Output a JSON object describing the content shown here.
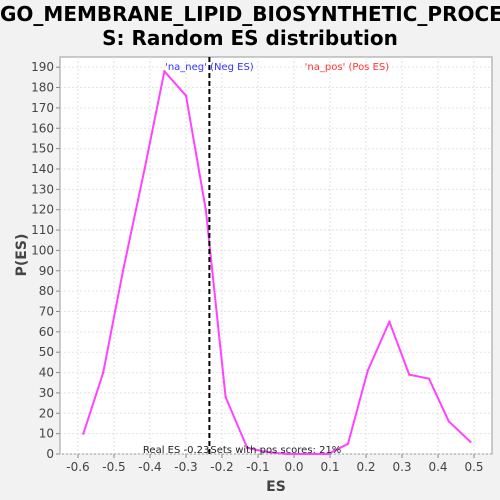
{
  "chart_data": {
    "type": "line",
    "title_lines": [
      "GO_MEMBRANE_LIPID_BIOSYNTHETIC_PROCES",
      "S: Random ES distribution"
    ],
    "xlabel": "ES",
    "ylabel": "P(ES)",
    "xlim": [
      -0.65,
      0.55
    ],
    "ylim": [
      0,
      195
    ],
    "x_ticks": [
      -0.6,
      -0.5,
      -0.4,
      -0.3,
      -0.2,
      -0.1,
      0.0,
      0.1,
      0.2,
      0.3,
      0.4,
      0.5
    ],
    "x_tick_labels": [
      "-0.6",
      "-0.5",
      "-0.4",
      "-0.3",
      "-0.2",
      "-0.1",
      "0.0",
      "0.1",
      "0.2",
      "0.3",
      "0.4",
      "0.5"
    ],
    "y_ticks": [
      0,
      10,
      20,
      30,
      40,
      50,
      60,
      70,
      80,
      90,
      100,
      110,
      120,
      130,
      140,
      150,
      160,
      170,
      180,
      190
    ],
    "y_tick_labels": [
      "0",
      "10",
      "20",
      "30",
      "40",
      "50",
      "60",
      "70",
      "80",
      "90",
      "100",
      "110",
      "120",
      "130",
      "140",
      "150",
      "160",
      "170",
      "180",
      "190"
    ],
    "grid": true,
    "series": [
      {
        "color": "#ff44ff",
        "x": [
          -0.585,
          -0.53,
          -0.475,
          -0.415,
          -0.36,
          -0.3,
          -0.245,
          -0.19,
          -0.13,
          -0.075,
          -0.02,
          0.04,
          0.095,
          0.15,
          0.205,
          0.265,
          0.32,
          0.375,
          0.43,
          0.49
        ],
        "y": [
          10,
          40,
          90,
          140,
          188,
          176,
          120,
          28,
          3,
          1,
          0,
          0,
          0,
          5,
          41,
          65,
          39,
          37,
          16,
          6
        ]
      }
    ],
    "real_es_line": {
      "x": -0.235,
      "color": "#000000"
    },
    "annotations": {
      "neg_label": "'na_neg' (Neg ES)",
      "neg_color": "#3333ff",
      "pos_label": "'na_pos' (Pos ES)",
      "pos_color": "#ff3333",
      "real_es_text": "Real ES -0.23",
      "pos_scores_text": "Sets with pos scores: 21%"
    }
  }
}
